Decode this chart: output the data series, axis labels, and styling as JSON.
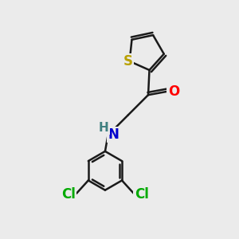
{
  "bg_color": "#ebebeb",
  "bond_color": "#1a1a1a",
  "sulfur_color": "#b8a000",
  "oxygen_color": "#ff0000",
  "nitrogen_color": "#0000cc",
  "chlorine_color": "#00aa00",
  "hydrogen_color": "#408080",
  "line_width": 1.8,
  "fig_size": [
    3.0,
    3.0
  ],
  "dpi": 100,
  "xlim": [
    0,
    10
  ],
  "ylim": [
    0,
    10
  ]
}
